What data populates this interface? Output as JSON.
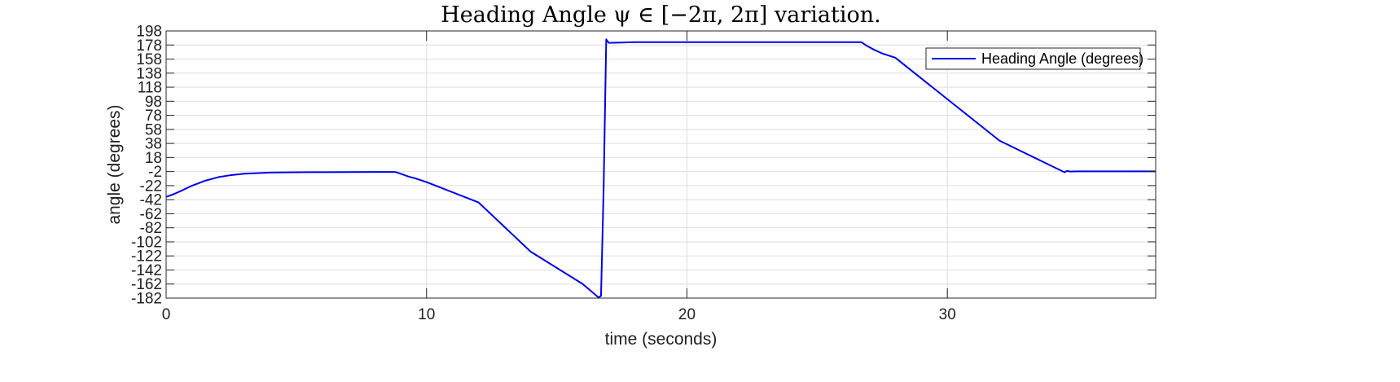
{
  "chart_data": {
    "type": "line",
    "title": "Heading Angle ψ ∈ [−2π, 2π] variation.",
    "xlabel": "time (seconds)",
    "ylabel": "angle (degrees)",
    "xlim": [
      0,
      38
    ],
    "ylim": [
      -182,
      198
    ],
    "xticks": [
      0,
      10,
      20,
      30
    ],
    "yticks": [
      198,
      178,
      158,
      138,
      118,
      98,
      78,
      58,
      38,
      18,
      -2,
      -22,
      -42,
      -62,
      -82,
      -102,
      -122,
      -142,
      -162,
      -182
    ],
    "grid": true,
    "legend": {
      "placement": "top-right",
      "entries": [
        "Heading Angle (degrees)"
      ]
    },
    "series": [
      {
        "name": "Heading Angle (degrees)",
        "color": "#0000e6",
        "x": [
          0,
          0.3,
          0.6,
          1.0,
          1.5,
          2.0,
          2.5,
          3.0,
          4.0,
          5.0,
          6.0,
          7.0,
          8.0,
          8.8,
          9.0,
          9.3,
          9.6,
          10.0,
          12.0,
          14.0,
          16.0,
          16.6,
          16.7,
          16.8,
          16.9,
          17.0,
          18.0,
          20.0,
          22.0,
          24.0,
          26.0,
          26.7,
          26.9,
          27.2,
          27.5,
          28.0,
          30.0,
          32.0,
          34.0,
          34.5,
          34.6,
          34.7,
          34.8,
          35.0,
          36.0,
          38.0
        ],
        "y": [
          -38,
          -34,
          -29,
          -22,
          -15,
          -10,
          -7,
          -5,
          -3.5,
          -3,
          -2.8,
          -2.7,
          -2.6,
          -2.6,
          -5,
          -9,
          -12,
          -17,
          -46,
          -116,
          -162,
          -181,
          -179,
          -27,
          186,
          181,
          182,
          182,
          182,
          182,
          182,
          182,
          177,
          171,
          166,
          160,
          101,
          42,
          6,
          -3,
          -1,
          -2,
          -1.8,
          -1.7,
          -1.7,
          -1.7
        ]
      }
    ]
  }
}
